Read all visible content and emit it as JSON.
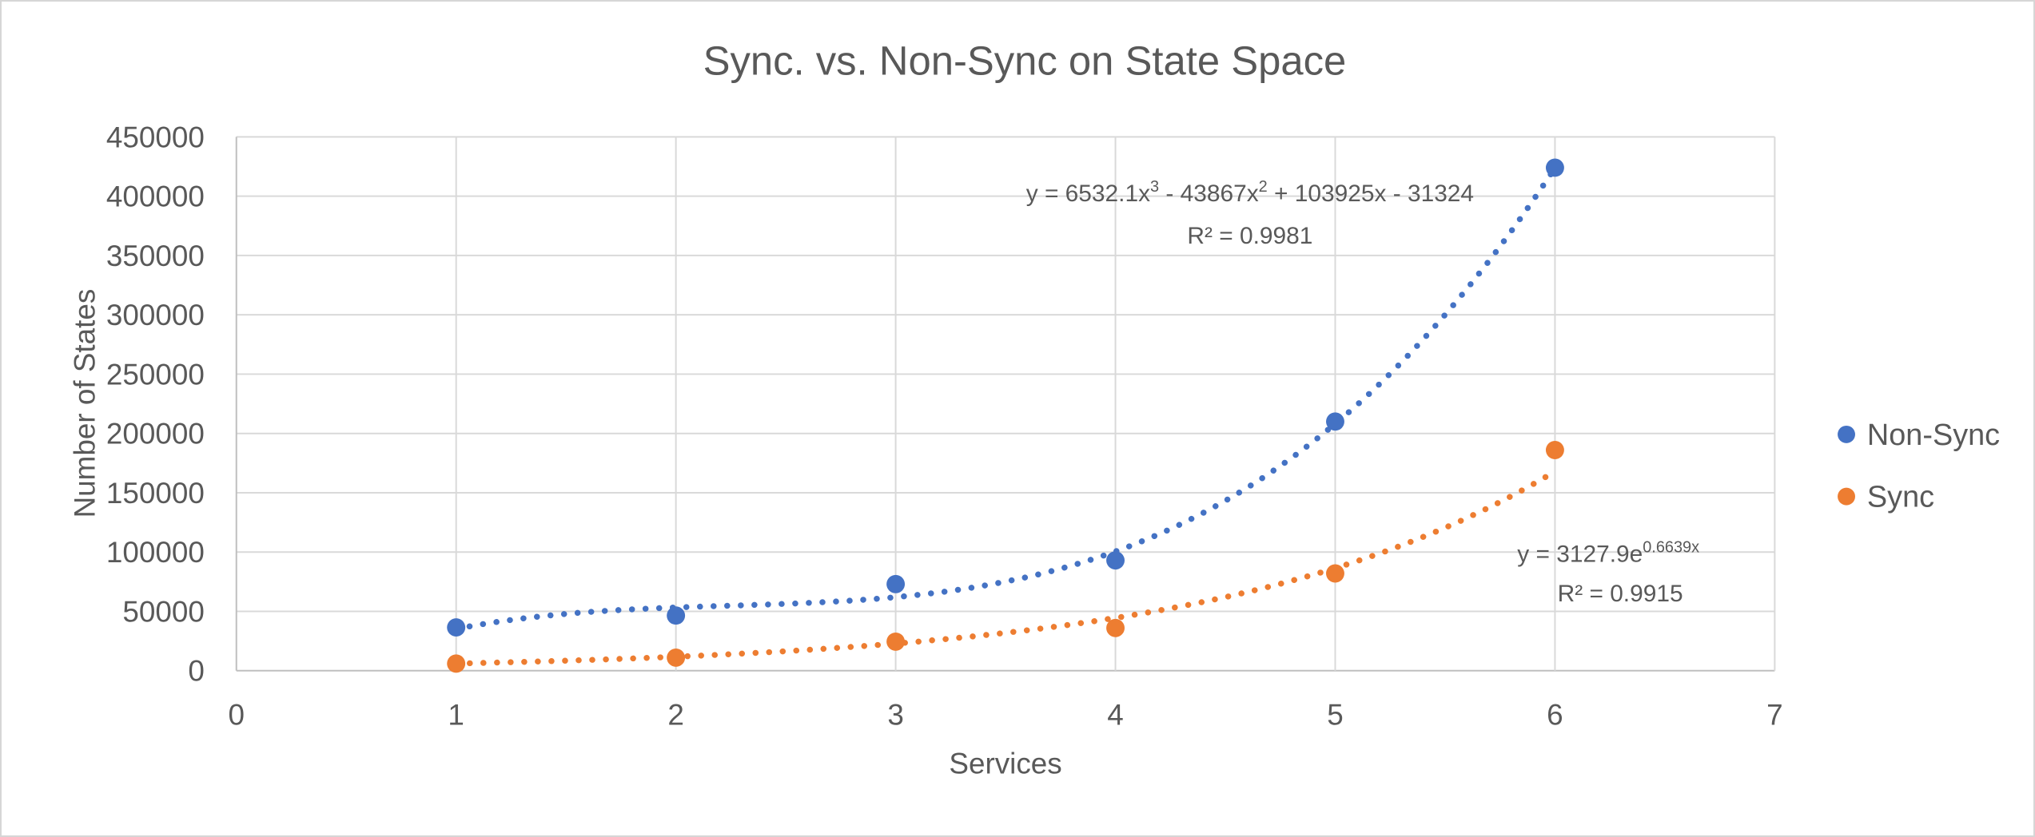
{
  "chart_data": {
    "type": "scatter",
    "title": "Sync. vs. Non-Sync on State Space",
    "xlabel": "Services",
    "ylabel": "Number of States",
    "xlim": [
      0,
      7
    ],
    "ylim": [
      0,
      450000
    ],
    "x_ticks": [
      0,
      1,
      2,
      3,
      4,
      5,
      6,
      7
    ],
    "y_ticks": [
      0,
      50000,
      100000,
      150000,
      200000,
      250000,
      300000,
      350000,
      400000,
      450000
    ],
    "grid": true,
    "legend_position": "right",
    "colors": {
      "non_sync": "#4472C4",
      "sync": "#ED7D31",
      "text": "#595959",
      "gridline": "#D9D9D9",
      "axis_line": "#BFBFBF",
      "background": "#FFFFFF"
    },
    "series": [
      {
        "name": "Non-Sync",
        "color": "#4472C4",
        "marker": "circle",
        "x": [
          1,
          2,
          3,
          4,
          5,
          6
        ],
        "y": [
          36500,
          46500,
          73000,
          93000,
          210000,
          424000
        ],
        "trendline": {
          "type": "polynomial",
          "degree": 3,
          "coefficients": [
            6532.1,
            -43867,
            103925,
            -31324
          ],
          "line_style": "dotted",
          "equation_segments": [
            {
              "text": "y = 6532.1x"
            },
            {
              "text": "3",
              "sup": true
            },
            {
              "text": " - 43867x"
            },
            {
              "text": "2",
              "sup": true
            },
            {
              "text": " + 103925x - 31324"
            }
          ],
          "r_squared_label": "R² = 0.9981"
        }
      },
      {
        "name": "Sync",
        "color": "#ED7D31",
        "marker": "circle",
        "x": [
          1,
          2,
          3,
          4,
          5,
          6
        ],
        "y": [
          6000,
          11000,
          24500,
          36000,
          82000,
          186000
        ],
        "trendline": {
          "type": "exponential",
          "a": 3127.9,
          "b": 0.6639,
          "line_style": "dotted",
          "equation_segments": [
            {
              "text": "y = 3127.9e"
            },
            {
              "text": "0.6639x",
              "sup": true
            }
          ],
          "r_squared_label": "R² = 0.9915"
        }
      }
    ]
  }
}
